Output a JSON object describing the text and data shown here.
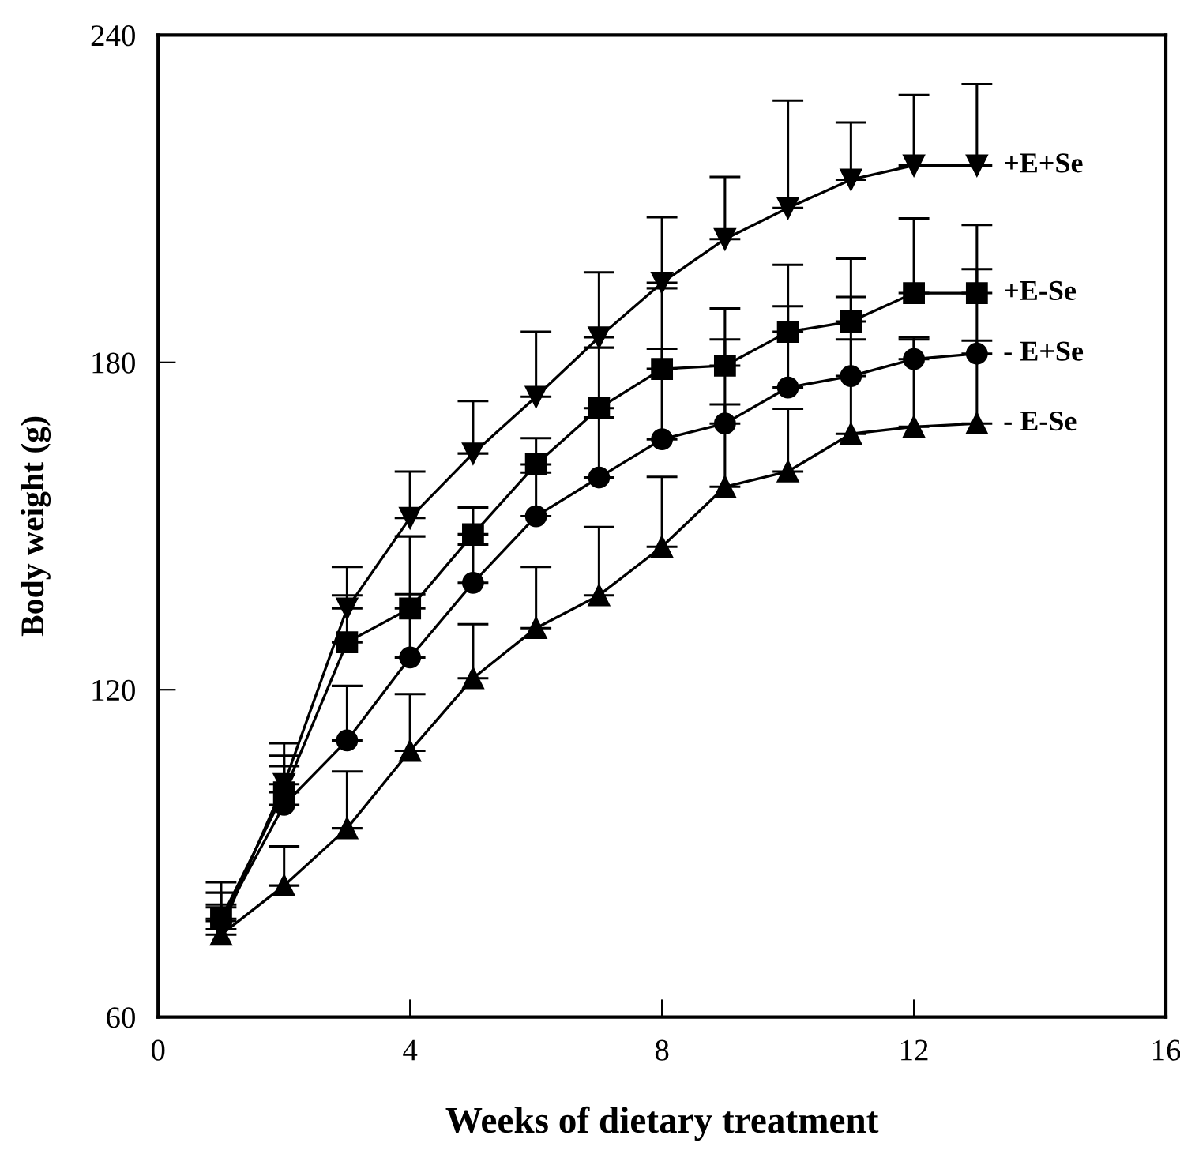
{
  "chart_data": {
    "type": "line",
    "xlabel": "Weeks of dietary treatment",
    "ylabel": "Body weight (g)",
    "x": [
      1,
      2,
      3,
      4,
      5,
      6,
      7,
      8,
      9,
      10,
      11,
      12,
      13
    ],
    "xlim": [
      0,
      16
    ],
    "xticks": [
      0,
      4,
      8,
      12,
      16
    ],
    "ylim": [
      60,
      240
    ],
    "yticks": [
      60,
      120,
      180,
      240
    ],
    "grid": false,
    "legend": "right",
    "line_style": "solid",
    "series": [
      {
        "name": "+E+Se",
        "color": "#000000",
        "marker": "triangle_down",
        "values": [
          76.1,
          102.7,
          134.9,
          151.5,
          163.3,
          173.7,
          184.6,
          194.6,
          202.6,
          208.3,
          213.5,
          216.1,
          216.1
        ],
        "errors": [
          [
            76.1,
            84.7
          ],
          [
            102.7,
            110.2
          ],
          [
            134.9,
            142.5
          ],
          [
            151.5,
            160
          ],
          [
            163.3,
            172.9
          ],
          [
            173.7,
            185.6
          ],
          [
            184.6,
            196.5
          ],
          [
            194.6,
            206.6
          ],
          [
            202.6,
            214
          ],
          [
            208.3,
            228
          ],
          [
            213.5,
            224
          ],
          [
            216.1,
            229
          ],
          [
            216.1,
            231
          ]
        ]
      },
      {
        "name": "+E-Se",
        "color": "#000000",
        "marker": "square",
        "values": [
          78,
          101.2,
          128.7,
          134.9,
          148.5,
          161.3,
          171.6,
          178.8,
          179.4,
          185.6,
          187.5,
          192.7,
          192.7
        ],
        "errors": [
          [
            78,
            82.8
          ],
          [
            101.2,
            107.9
          ],
          [
            128.7,
            137.3
          ],
          [
            134.9,
            148.1
          ],
          [
            148.5,
            153.4
          ],
          [
            161.3,
            166.1
          ],
          [
            171.6,
            182.7
          ],
          [
            178.8,
            193.6
          ],
          [
            179.4,
            189.9
          ],
          [
            185.6,
            197.9
          ],
          [
            187.5,
            199
          ],
          [
            192.7,
            206.4
          ],
          [
            192.7,
            205.2
          ]
        ]
      },
      {
        "name": "- E+Se",
        "color": "#000000",
        "marker": "circle",
        "values": [
          77.6,
          98.9,
          110.7,
          125.9,
          139.6,
          151.8,
          158.9,
          165.9,
          168.8,
          175.4,
          177.5,
          180.6,
          181.6
        ],
        "errors": [
          [
            77.6,
            80.6
          ],
          [
            98.9,
            106
          ],
          [
            110.7,
            120.7
          ],
          [
            125.9,
            137.5
          ],
          [
            139.6,
            146.6
          ],
          [
            151.8,
            159.8
          ],
          [
            158.9,
            169.9
          ],
          [
            165.9,
            182.5
          ],
          [
            168.8,
            184.2
          ],
          [
            175.4,
            190.3
          ],
          [
            177.5,
            192
          ],
          [
            180.6,
            184.6
          ],
          [
            181.6,
            197.1
          ]
        ]
      },
      {
        "name": "- E-Se",
        "color": "#000000",
        "marker": "triangle",
        "values": [
          75.1,
          84.1,
          94.6,
          108.8,
          122.1,
          131.3,
          137.3,
          146.2,
          157.2,
          160,
          166.9,
          168.2,
          168.8
        ],
        "errors": [
          [
            75.1,
            80.1
          ],
          [
            84.1,
            91.3
          ],
          [
            94.6,
            105
          ],
          [
            108.8,
            119.2
          ],
          [
            122.1,
            132
          ],
          [
            131.3,
            142.5
          ],
          [
            137.3,
            149.8
          ],
          [
            146.2,
            159
          ],
          [
            157.2,
            172.3
          ],
          [
            160,
            171.5
          ],
          [
            166.9,
            184.2
          ],
          [
            168.2,
            184.2
          ],
          [
            168.8,
            184
          ]
        ]
      }
    ]
  }
}
